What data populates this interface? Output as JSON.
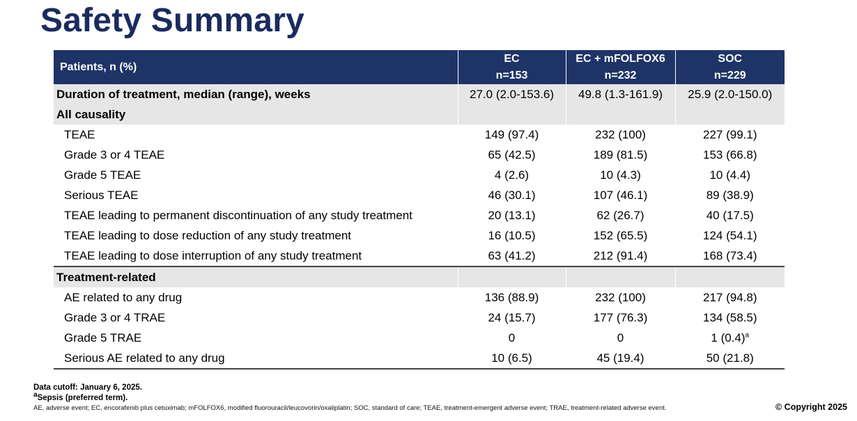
{
  "title": "Safety Summary",
  "table": {
    "header_label": "Patients, n (%)",
    "columns": [
      {
        "arm": "EC",
        "n": "n=153"
      },
      {
        "arm": "EC + mFOLFOX6",
        "n": "n=232"
      },
      {
        "arm": "SOC",
        "n": "n=229"
      }
    ],
    "duration": {
      "label": "Duration of treatment, median (range), weeks",
      "values": [
        "27.0 (2.0-153.6)",
        "49.8 (1.3-161.9)",
        "25.9 (2.0-150.0)"
      ]
    },
    "sections": [
      {
        "title": "All causality",
        "rows": [
          {
            "label": "TEAE",
            "values": [
              "149 (97.4)",
              "232 (100)",
              "227 (99.1)"
            ]
          },
          {
            "label": "Grade 3 or 4 TEAE",
            "values": [
              "65 (42.5)",
              "189 (81.5)",
              "153 (66.8)"
            ]
          },
          {
            "label": "Grade 5 TEAE",
            "values": [
              "4 (2.6)",
              "10 (4.3)",
              "10 (4.4)"
            ]
          },
          {
            "label": "Serious TEAE",
            "values": [
              "46 (30.1)",
              "107 (46.1)",
              "89 (38.9)"
            ]
          },
          {
            "label": "TEAE leading to permanent discontinuation of any study treatment",
            "values": [
              "20 (13.1)",
              "62 (26.7)",
              "40 (17.5)"
            ]
          },
          {
            "label": "TEAE leading to dose reduction of any study treatment",
            "values": [
              "16 (10.5)",
              "152 (65.5)",
              "124 (54.1)"
            ]
          },
          {
            "label": "TEAE leading to dose interruption of any study treatment",
            "values": [
              "63 (41.2)",
              "212 (91.4)",
              "168 (73.4)"
            ]
          }
        ]
      },
      {
        "title": "Treatment-related",
        "rows": [
          {
            "label": "AE related to any drug",
            "values": [
              "136 (88.9)",
              "232 (100)",
              "217 (94.8)"
            ]
          },
          {
            "label": "Grade 3 or 4 TRAE",
            "values": [
              "24 (15.7)",
              "177 (76.3)",
              "134 (58.5)"
            ]
          },
          {
            "label": "Grade 5 TRAE",
            "values": [
              "0",
              "0",
              "1 (0.4)"
            ],
            "footnote_marks": [
              "",
              "",
              "a"
            ]
          },
          {
            "label": "Serious AE related to any drug",
            "values": [
              "10 (6.5)",
              "45 (19.4)",
              "50 (21.8)"
            ]
          }
        ]
      }
    ]
  },
  "footnotes": {
    "data_cutoff": "Data cutoff: January 6, 2025.",
    "note_a_mark": "a",
    "note_a_text": "Sepsis (preferred term).",
    "abbreviations": "AE, adverse event; EC, encorafenib plus cetuximab; mFOLFOX6, modified fluorouracil/leucovorin/oxaliplatin; SOC, standard of care; TEAE, treatment-emergent adverse event; TRAE, treatment-related adverse event."
  },
  "copyright": "© Copyright 2025"
}
